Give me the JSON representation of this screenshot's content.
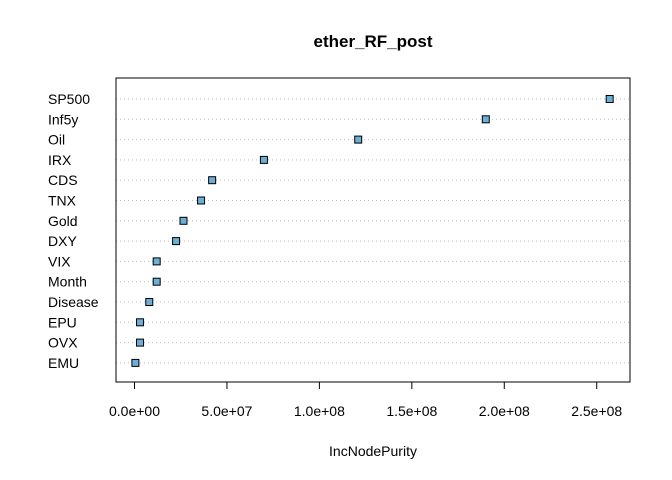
{
  "chart_data": {
    "type": "scatter",
    "title": "ether_RF_post",
    "xlabel": "IncNodePurity",
    "ylabel": "",
    "xlim": [
      -10000000,
      268000000
    ],
    "xticks": [
      0,
      50000000,
      100000000,
      150000000,
      200000000,
      250000000
    ],
    "xtick_labels": [
      "0.0e+00",
      "5.0e+07",
      "1.0e+08",
      "1.5e+08",
      "2.0e+08",
      "2.5e+08"
    ],
    "grid": "horizontal dotted",
    "legend": "none",
    "point_color": "#6baed6",
    "categories": [
      "SP500",
      "Inf5y",
      "Oil",
      "IRX",
      "CDS",
      "TNX",
      "Gold",
      "DXY",
      "VIX",
      "Month",
      "Disease",
      "EPU",
      "OVX",
      "EMU"
    ],
    "values": [
      257000000,
      190000000,
      121000000,
      70000000,
      42000000,
      36000000,
      26500000,
      22500000,
      12000000,
      12000000,
      8000000,
      3000000,
      3000000,
      500000
    ]
  }
}
